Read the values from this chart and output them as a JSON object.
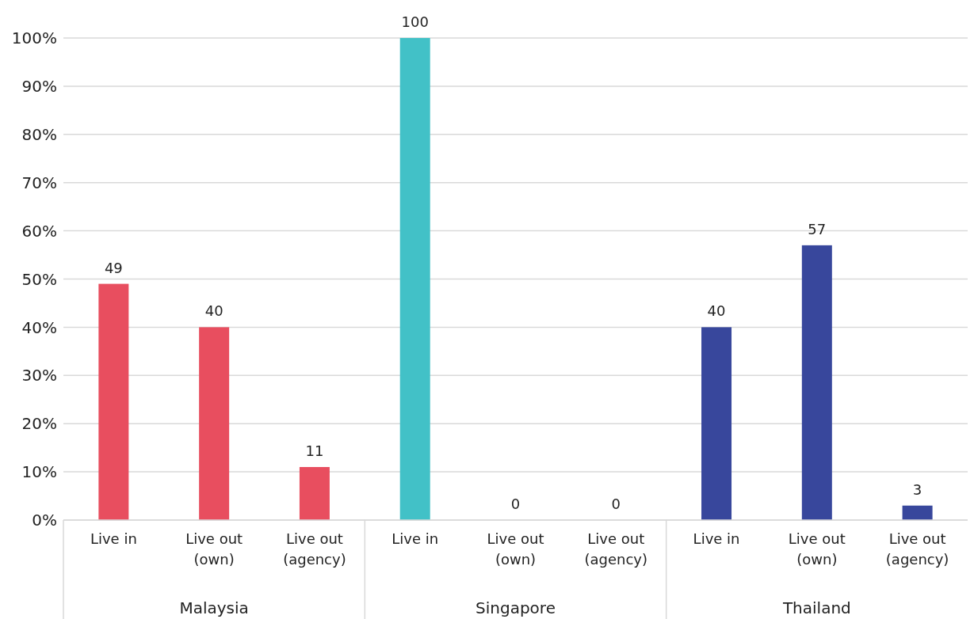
{
  "chart_data": {
    "type": "bar",
    "categories": [
      "Live in",
      "Live out (own)",
      "Live out (agency)",
      "Live in",
      "Live out (own)",
      "Live out (agency)",
      "Live in",
      "Live out (own)",
      "Live out (agency)"
    ],
    "values": [
      49,
      40,
      11,
      100,
      0,
      0,
      40,
      57,
      3
    ],
    "colors": [
      "#e84e5f",
      "#e84e5f",
      "#e84e5f",
      "#42c1c7",
      "#42c1c7",
      "#42c1c7",
      "#38479c",
      "#38479c",
      "#38479c"
    ],
    "annotations": [
      "Malaysia",
      "Singapore",
      "Thailand"
    ],
    "ylim": [
      0,
      100
    ],
    "yticks": [
      {
        "value": 0,
        "label": "0%"
      },
      {
        "value": 10,
        "label": "10%"
      },
      {
        "value": 20,
        "label": "20%"
      },
      {
        "value": 30,
        "label": "30%"
      },
      {
        "value": 40,
        "label": "40%"
      },
      {
        "value": 50,
        "label": "50%"
      },
      {
        "value": 60,
        "label": "60%"
      },
      {
        "value": 70,
        "label": "70%"
      },
      {
        "value": 80,
        "label": "80%"
      },
      {
        "value": 90,
        "label": "90%"
      },
      {
        "value": 100,
        "label": "100%"
      }
    ],
    "grid": "y",
    "data_labels": true,
    "legend": false
  }
}
